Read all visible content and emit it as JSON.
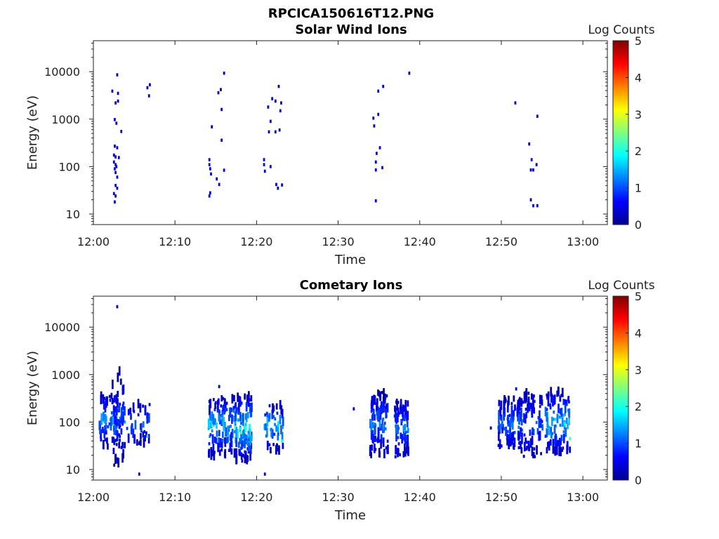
{
  "figure_title": "RPCICA150616T12.PNG",
  "chart_data": [
    {
      "type": "heatmap",
      "title": "Solar Wind Ions",
      "xlabel": "Time",
      "ylabel": "Energy (eV)",
      "x_ticks": [
        "12:00",
        "12:10",
        "12:20",
        "12:30",
        "12:40",
        "12:50",
        "13:00"
      ],
      "x_range_minutes": [
        0,
        63
      ],
      "y_scale": "log",
      "y_range": [
        6,
        45000
      ],
      "y_ticks": [
        10,
        100,
        1000,
        10000
      ],
      "y_tick_labels": [
        "10",
        "100",
        "1000",
        "10000"
      ],
      "colorbar": {
        "label": "Log Counts",
        "range": [
          0,
          5
        ],
        "ticks": [
          "0",
          "1",
          "2",
          "3",
          "4",
          "5"
        ]
      },
      "grid": false,
      "cells": [
        {
          "t": 2.2,
          "e": 3900,
          "c": 0.3
        },
        {
          "t": 2.8,
          "e": 8600,
          "c": 0.3
        },
        {
          "t": 2.6,
          "e": 2200,
          "c": 0.3
        },
        {
          "t": 2.9,
          "e": 3500,
          "c": 0.3
        },
        {
          "t": 2.9,
          "e": 2400,
          "c": 0.3
        },
        {
          "t": 2.5,
          "e": 980,
          "c": 0.3
        },
        {
          "t": 2.7,
          "e": 820,
          "c": 0.3
        },
        {
          "t": 3.3,
          "e": 550,
          "c": 0.3
        },
        {
          "t": 2.5,
          "e": 270,
          "c": 0.3
        },
        {
          "t": 2.8,
          "e": 250,
          "c": 0.3
        },
        {
          "t": 3.0,
          "e": 155,
          "c": 0.3
        },
        {
          "t": 2.4,
          "e": 175,
          "c": 0.5
        },
        {
          "t": 2.4,
          "e": 125,
          "c": 0.5
        },
        {
          "t": 2.6,
          "e": 160,
          "c": 0.5
        },
        {
          "t": 2.6,
          "e": 110,
          "c": 0.5
        },
        {
          "t": 2.5,
          "e": 90,
          "c": 0.5
        },
        {
          "t": 2.6,
          "e": 75,
          "c": 0.5
        },
        {
          "t": 2.7,
          "e": 100,
          "c": 0.5
        },
        {
          "t": 2.8,
          "e": 60,
          "c": 0.5
        },
        {
          "t": 2.6,
          "e": 40,
          "c": 0.5
        },
        {
          "t": 2.8,
          "e": 35,
          "c": 0.5
        },
        {
          "t": 2.4,
          "e": 27,
          "c": 0.5
        },
        {
          "t": 2.6,
          "e": 24,
          "c": 0.5
        },
        {
          "t": 2.5,
          "e": 18,
          "c": 0.5
        },
        {
          "t": 6.5,
          "e": 4600,
          "c": 0.3
        },
        {
          "t": 6.8,
          "e": 5300,
          "c": 0.3
        },
        {
          "t": 6.7,
          "e": 3100,
          "c": 0.3
        },
        {
          "t": 15.9,
          "e": 9300,
          "c": 0.3
        },
        {
          "t": 15.5,
          "e": 4200,
          "c": 0.3
        },
        {
          "t": 15.2,
          "e": 3600,
          "c": 0.3
        },
        {
          "t": 15.6,
          "e": 1600,
          "c": 0.3
        },
        {
          "t": 14.4,
          "e": 690,
          "c": 0.3
        },
        {
          "t": 15.6,
          "e": 360,
          "c": 0.3
        },
        {
          "t": 14.1,
          "e": 140,
          "c": 0.5
        },
        {
          "t": 14.1,
          "e": 110,
          "c": 0.5
        },
        {
          "t": 14.2,
          "e": 90,
          "c": 0.5
        },
        {
          "t": 14.3,
          "e": 70,
          "c": 0.5
        },
        {
          "t": 15.0,
          "e": 55,
          "c": 0.5
        },
        {
          "t": 15.3,
          "e": 42,
          "c": 0.5
        },
        {
          "t": 14.2,
          "e": 28,
          "c": 0.5
        },
        {
          "t": 14.1,
          "e": 24,
          "c": 0.5
        },
        {
          "t": 15.9,
          "e": 84,
          "c": 0.5
        },
        {
          "t": 22.6,
          "e": 4900,
          "c": 0.3
        },
        {
          "t": 21.8,
          "e": 2700,
          "c": 0.3
        },
        {
          "t": 22.2,
          "e": 2400,
          "c": 0.3
        },
        {
          "t": 22.9,
          "e": 2200,
          "c": 0.3
        },
        {
          "t": 21.3,
          "e": 1800,
          "c": 0.3
        },
        {
          "t": 22.8,
          "e": 1500,
          "c": 0.3
        },
        {
          "t": 21.6,
          "e": 900,
          "c": 0.3
        },
        {
          "t": 21.4,
          "e": 540,
          "c": 0.3
        },
        {
          "t": 22.2,
          "e": 540,
          "c": 0.3
        },
        {
          "t": 22.7,
          "e": 590,
          "c": 0.3
        },
        {
          "t": 20.8,
          "e": 140,
          "c": 0.5
        },
        {
          "t": 20.8,
          "e": 110,
          "c": 0.5
        },
        {
          "t": 20.9,
          "e": 80,
          "c": 0.5
        },
        {
          "t": 21.6,
          "e": 100,
          "c": 0.5
        },
        {
          "t": 22.3,
          "e": 42,
          "c": 0.5
        },
        {
          "t": 22.5,
          "e": 35,
          "c": 0.5
        },
        {
          "t": 23.0,
          "e": 41,
          "c": 0.5
        },
        {
          "t": 35.4,
          "e": 4900,
          "c": 0.3
        },
        {
          "t": 34.8,
          "e": 3900,
          "c": 0.3
        },
        {
          "t": 34.8,
          "e": 1260,
          "c": 0.3
        },
        {
          "t": 34.2,
          "e": 1050,
          "c": 0.3
        },
        {
          "t": 34.3,
          "e": 720,
          "c": 0.3
        },
        {
          "t": 35.0,
          "e": 250,
          "c": 0.3
        },
        {
          "t": 34.6,
          "e": 190,
          "c": 0.5
        },
        {
          "t": 34.5,
          "e": 125,
          "c": 0.5
        },
        {
          "t": 34.5,
          "e": 85,
          "c": 0.5
        },
        {
          "t": 35.3,
          "e": 95,
          "c": 0.5
        },
        {
          "t": 34.5,
          "e": 19,
          "c": 0.5
        },
        {
          "t": 38.6,
          "e": 9300,
          "c": 0.3
        },
        {
          "t": 51.6,
          "e": 2200,
          "c": 0.3
        },
        {
          "t": 54.3,
          "e": 1150,
          "c": 0.3
        },
        {
          "t": 53.3,
          "e": 300,
          "c": 0.3
        },
        {
          "t": 53.6,
          "e": 140,
          "c": 0.5
        },
        {
          "t": 54.2,
          "e": 110,
          "c": 0.3
        },
        {
          "t": 53.5,
          "e": 85,
          "c": 0.5
        },
        {
          "t": 53.8,
          "e": 85,
          "c": 0.5
        },
        {
          "t": 53.5,
          "e": 20,
          "c": 0.5
        },
        {
          "t": 53.8,
          "e": 15,
          "c": 0.5
        },
        {
          "t": 54.3,
          "e": 15,
          "c": 0.5
        }
      ]
    },
    {
      "type": "heatmap",
      "title": "Cometary Ions",
      "xlabel": "Time",
      "ylabel": "Energy (eV)",
      "x_ticks": [
        "12:00",
        "12:10",
        "12:20",
        "12:30",
        "12:40",
        "12:50",
        "13:00"
      ],
      "x_range_minutes": [
        0,
        63
      ],
      "y_scale": "log",
      "y_range": [
        6,
        45000
      ],
      "y_ticks": [
        10,
        100,
        1000,
        10000
      ],
      "y_tick_labels": [
        "10",
        "100",
        "1000",
        "10000"
      ],
      "colorbar": {
        "label": "Log Counts",
        "range": [
          0,
          5
        ],
        "ticks": [
          "0",
          "1",
          "2",
          "3",
          "4",
          "5"
        ]
      },
      "grid": false,
      "clusters": [
        {
          "t0": 0.5,
          "t1": 3.8,
          "e0": 30,
          "e1": 400,
          "cmax": 1.4,
          "n": 80
        },
        {
          "t0": 2.2,
          "t1": 3.6,
          "e0": 12,
          "e1": 1300,
          "cmax": 0.9,
          "n": 35
        },
        {
          "t0": 4.0,
          "t1": 6.8,
          "e0": 35,
          "e1": 250,
          "cmax": 1.2,
          "n": 40
        },
        {
          "t0": 14.0,
          "t1": 17.0,
          "e0": 18,
          "e1": 350,
          "cmax": 1.7,
          "n": 110
        },
        {
          "t0": 17.0,
          "t1": 19.3,
          "e0": 15,
          "e1": 380,
          "cmax": 2.0,
          "n": 130
        },
        {
          "t0": 20.8,
          "t1": 23.2,
          "e0": 25,
          "e1": 250,
          "cmax": 1.8,
          "n": 50
        },
        {
          "t0": 33.8,
          "t1": 36.0,
          "e0": 20,
          "e1": 420,
          "cmax": 1.3,
          "n": 100
        },
        {
          "t0": 36.8,
          "t1": 38.5,
          "e0": 18,
          "e1": 280,
          "cmax": 1.2,
          "n": 70
        },
        {
          "t0": 49.5,
          "t1": 52.5,
          "e0": 25,
          "e1": 320,
          "cmax": 1.3,
          "n": 110
        },
        {
          "t0": 52.5,
          "t1": 55.0,
          "e0": 18,
          "e1": 420,
          "cmax": 1.0,
          "n": 70
        },
        {
          "t0": 55.3,
          "t1": 58.3,
          "e0": 22,
          "e1": 450,
          "cmax": 1.8,
          "n": 100
        }
      ],
      "cells": [
        {
          "t": 2.8,
          "e": 27000,
          "c": 0.3
        },
        {
          "t": 5.5,
          "e": 8,
          "c": 0.5
        },
        {
          "t": 20.9,
          "e": 8,
          "c": 0.5
        },
        {
          "t": 15.3,
          "e": 560,
          "c": 0.3
        },
        {
          "t": 51.7,
          "e": 500,
          "c": 0.3
        },
        {
          "t": 48.6,
          "e": 75,
          "c": 0.3
        },
        {
          "t": 31.8,
          "e": 190,
          "c": 0.3
        },
        {
          "t": 23.0,
          "e": 40,
          "c": 2.0
        },
        {
          "t": 58.3,
          "e": 45,
          "c": 2.2
        },
        {
          "t": 6.5,
          "e": 50,
          "c": 2.0
        },
        {
          "t": 18.0,
          "e": 60,
          "c": 2.3
        }
      ]
    }
  ]
}
